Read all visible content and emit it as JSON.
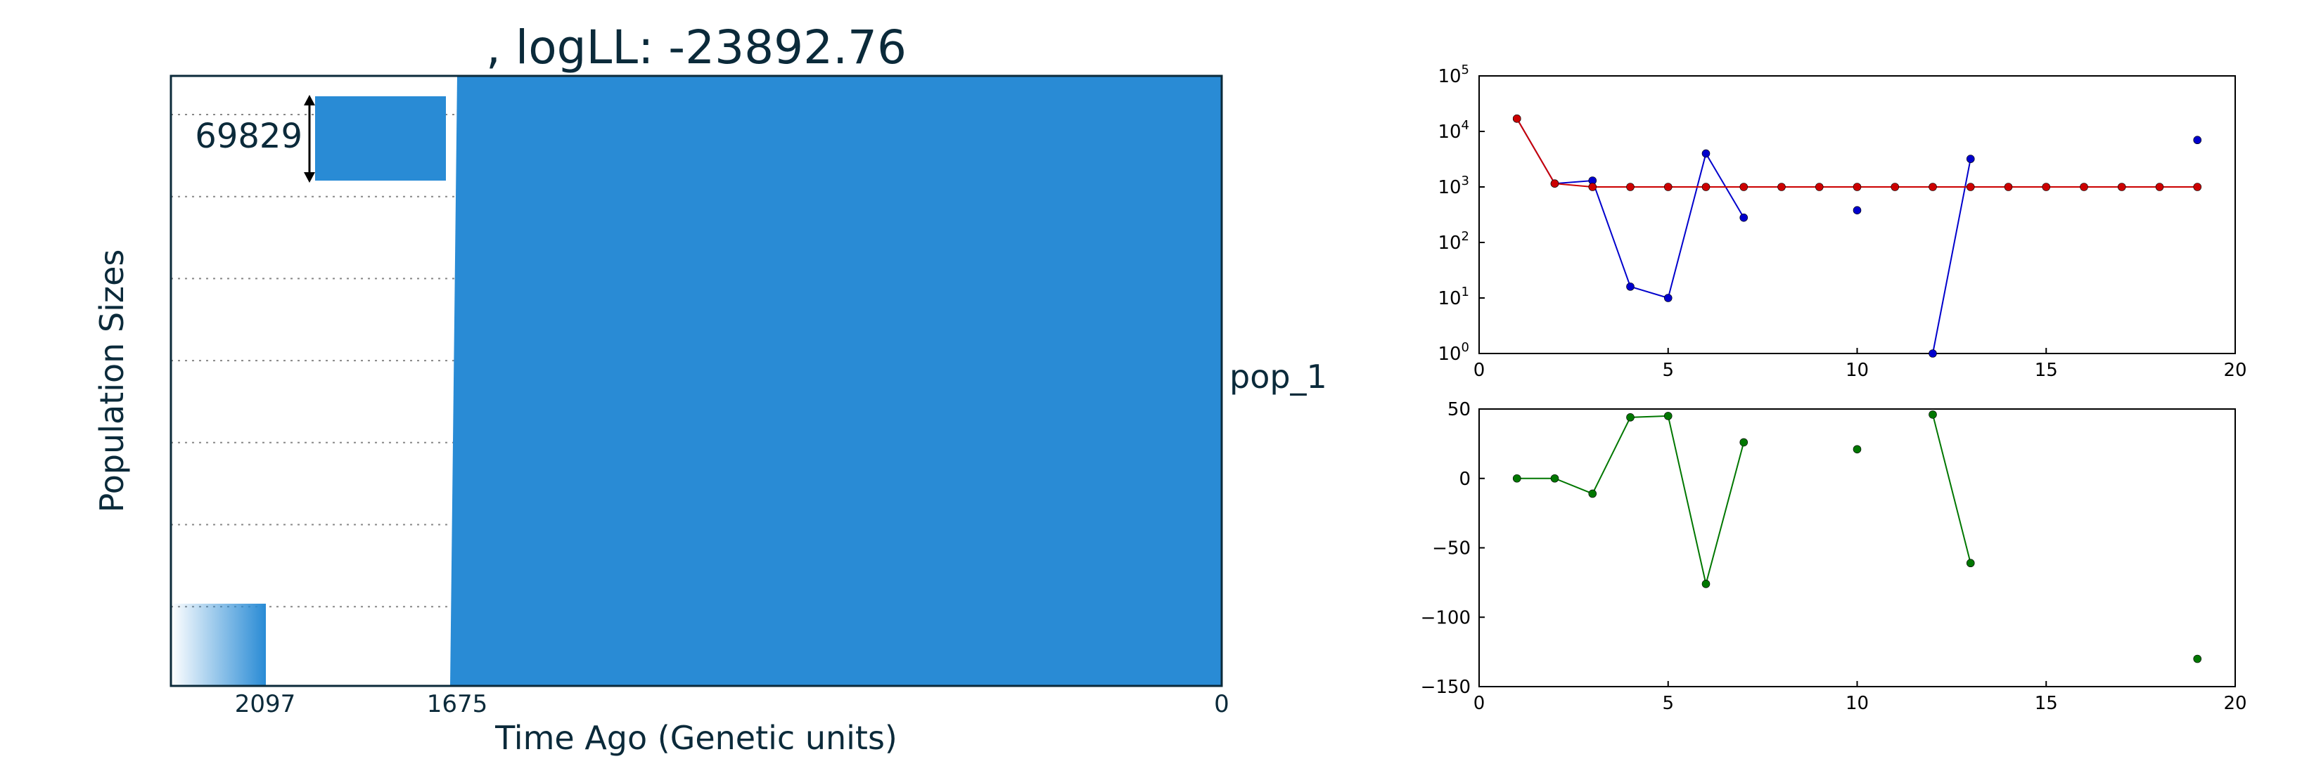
{
  "chart_data": [
    {
      "type": "area",
      "title": ", logLL:  -23892.76",
      "xlabel": "Time Ago (Genetic units)",
      "ylabel": "Population Sizes",
      "x_tick_labels": [
        "2097",
        "1675",
        "0"
      ],
      "population_label": "pop_1",
      "scale_bar_label": "69829",
      "fill_color": "#298bd5",
      "grid": "dotted horizontal",
      "blocks": [
        {
          "name": "pop_1",
          "start": 1675,
          "end": 0,
          "size": 69829
        },
        {
          "name": "",
          "start": 2097,
          "end": 1675,
          "size": 9975
        }
      ]
    },
    {
      "type": "line",
      "yscale": "log",
      "xlim": [
        0,
        20
      ],
      "ylim": [
        1,
        100000
      ],
      "x_ticks": [
        "0",
        "5",
        "10",
        "15",
        "20"
      ],
      "y_ticks": [
        "10^0",
        "10^1",
        "10^2",
        "10^3",
        "10^4",
        "10^5"
      ],
      "series": [
        {
          "color": "#0000cc",
          "segments": [
            [
              [
                1,
                17000
              ],
              [
                2,
                1150
              ],
              [
                3,
                1300
              ],
              [
                4,
                16
              ],
              [
                5,
                10
              ],
              [
                6,
                4000
              ],
              [
                7,
                280
              ]
            ],
            [
              [
                10,
                380
              ]
            ],
            [
              [
                12,
                1
              ],
              [
                13,
                3200
              ]
            ],
            [
              [
                19,
                7000
              ]
            ]
          ]
        },
        {
          "color": "#cc0000",
          "segments": [
            [
              [
                1,
                17000
              ],
              [
                2,
                1150
              ],
              [
                3,
                1000
              ],
              [
                4,
                1000
              ],
              [
                5,
                1000
              ],
              [
                6,
                1000
              ],
              [
                7,
                1000
              ],
              [
                8,
                1000
              ],
              [
                9,
                1000
              ],
              [
                10,
                1000
              ],
              [
                11,
                1000
              ],
              [
                12,
                1000
              ],
              [
                13,
                1000
              ],
              [
                14,
                1000
              ],
              [
                15,
                1000
              ],
              [
                16,
                1000
              ],
              [
                17,
                1000
              ],
              [
                18,
                1000
              ],
              [
                19,
                1000
              ]
            ]
          ]
        }
      ]
    },
    {
      "type": "line",
      "xlim": [
        0,
        20
      ],
      "ylim": [
        -150,
        50
      ],
      "x_ticks": [
        "0",
        "5",
        "10",
        "15",
        "20"
      ],
      "y_ticks": [
        "50",
        "0",
        "−50",
        "−100",
        "−150"
      ],
      "series": [
        {
          "color": "#007700",
          "segments": [
            [
              [
                1,
                0
              ],
              [
                2,
                0
              ],
              [
                3,
                -11
              ],
              [
                4,
                44
              ],
              [
                5,
                45
              ],
              [
                6,
                -76
              ],
              [
                7,
                26
              ]
            ],
            [
              [
                10,
                21
              ]
            ],
            [
              [
                12,
                46
              ],
              [
                13,
                -61
              ]
            ],
            [
              [
                19,
                -130
              ]
            ]
          ]
        }
      ]
    }
  ]
}
